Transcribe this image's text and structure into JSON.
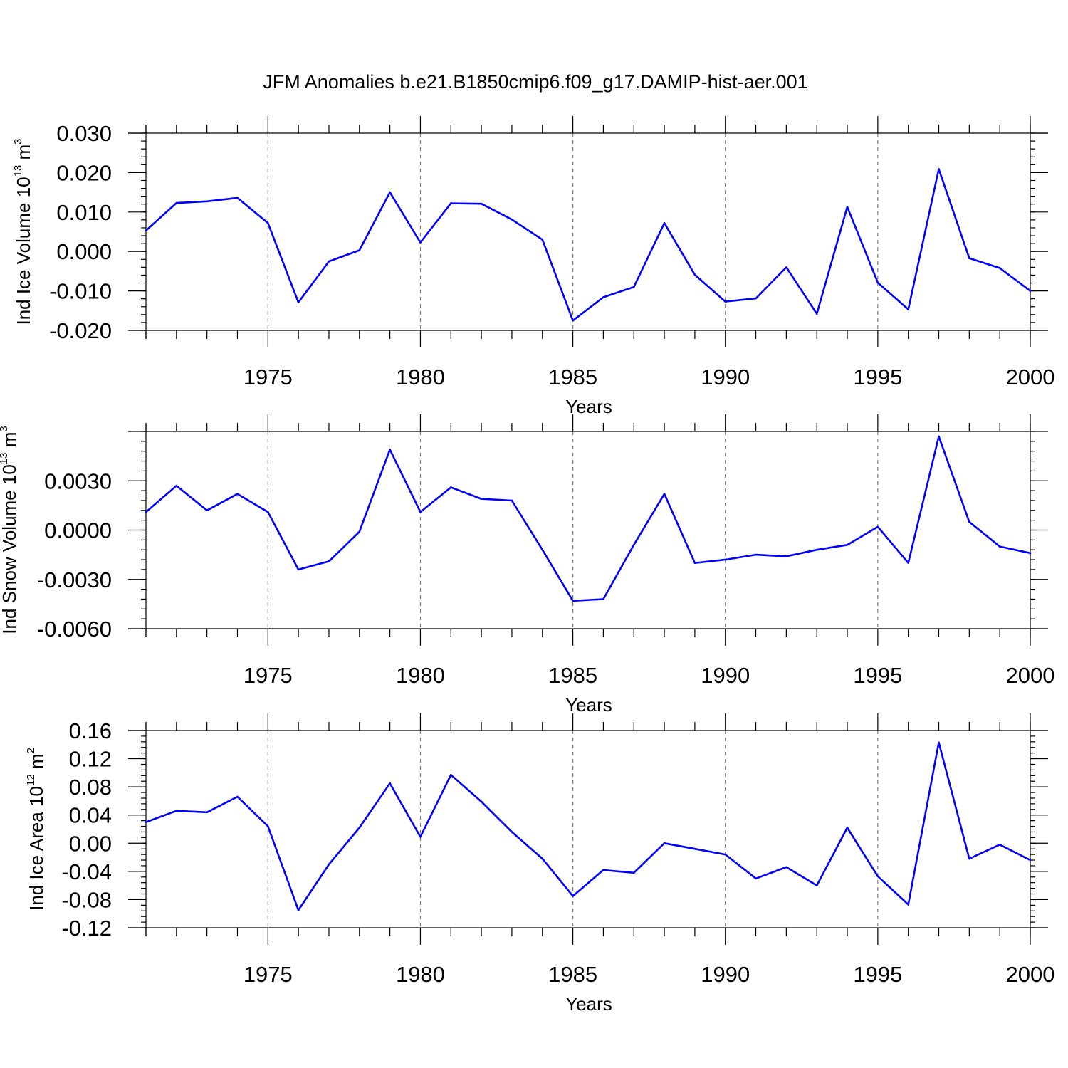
{
  "title": "JFM Anomalies b.e21.B1850cmip6.f09_g17.DAMIP-hist-aer.001",
  "colors": {
    "line": "#0000ff",
    "grid": "#7a7a7a",
    "axis": "#000000"
  },
  "chart_data": [
    {
      "type": "line",
      "ylabel": {
        "text": "Ind Ice Volume 10",
        "sup": "13",
        "unit": " m",
        "unit_sup": "3"
      },
      "xlabel": "Years",
      "xlim": [
        1971,
        2000
      ],
      "ylim": [
        -0.02,
        0.03
      ],
      "yticks": [
        -0.02,
        -0.01,
        0.0,
        0.01,
        0.02,
        0.03
      ],
      "ytick_labels": [
        "-0.020",
        "-0.010",
        "0.000",
        "0.010",
        "0.020",
        "0.030"
      ],
      "xticks": [
        1975,
        1980,
        1985,
        1990,
        1995,
        2000
      ],
      "xtick_labels": [
        "1975",
        "1980",
        "1985",
        "1990",
        "1995",
        "2000"
      ],
      "grid": "vertical dashed at major x ticks",
      "x": [
        1971,
        1972,
        1973,
        1974,
        1975,
        1976,
        1977,
        1978,
        1979,
        1980,
        1981,
        1982,
        1983,
        1984,
        1985,
        1986,
        1987,
        1988,
        1989,
        1990,
        1991,
        1992,
        1993,
        1994,
        1995,
        1996,
        1997,
        1998,
        1999,
        2000
      ],
      "y": [
        0.0053,
        0.0123,
        0.0127,
        0.0136,
        0.0072,
        -0.0129,
        -0.0025,
        0.0003,
        0.015,
        0.0023,
        0.0122,
        0.0121,
        0.0081,
        0.003,
        -0.0175,
        -0.0116,
        -0.009,
        0.0072,
        -0.0059,
        -0.0127,
        -0.0119,
        -0.004,
        -0.0158,
        0.0113,
        -0.0079,
        -0.0147,
        0.0209,
        -0.0017,
        -0.0042,
        -0.01
      ]
    },
    {
      "type": "line",
      "ylabel": {
        "text": "Ind Snow Volume 10",
        "sup": "13",
        "unit": " m",
        "unit_sup": "3"
      },
      "xlabel": "Years",
      "xlim": [
        1971,
        2000
      ],
      "ylim": [
        -0.006,
        0.006
      ],
      "yticks": [
        -0.006,
        -0.003,
        0.0,
        0.003
      ],
      "ytick_labels": [
        "-0.0060",
        "-0.0030",
        "0.0000",
        "0.0030"
      ],
      "xticks": [
        1975,
        1980,
        1985,
        1990,
        1995,
        2000
      ],
      "xtick_labels": [
        "1975",
        "1980",
        "1985",
        "1990",
        "1995",
        "2000"
      ],
      "grid": "vertical dashed at major x ticks",
      "x": [
        1971,
        1972,
        1973,
        1974,
        1975,
        1976,
        1977,
        1978,
        1979,
        1980,
        1981,
        1982,
        1983,
        1984,
        1985,
        1986,
        1987,
        1988,
        1989,
        1990,
        1991,
        1992,
        1993,
        1994,
        1995,
        1996,
        1997,
        1998,
        1999,
        2000
      ],
      "y": [
        0.0011,
        0.0027,
        0.0012,
        0.0022,
        0.0011,
        -0.0024,
        -0.0019,
        -0.0001,
        0.0049,
        0.0011,
        0.0026,
        0.0019,
        0.0018,
        -0.0012,
        -0.0043,
        -0.0042,
        -0.0009,
        0.0022,
        -0.002,
        -0.0018,
        -0.0015,
        -0.0016,
        -0.0012,
        -0.0009,
        0.0002,
        -0.002,
        0.0057,
        0.0005,
        -0.001,
        -0.0014
      ]
    },
    {
      "type": "line",
      "ylabel": {
        "text": "Ind Ice Area 10",
        "sup": "12",
        "unit": " m",
        "unit_sup": "2"
      },
      "xlabel": "Years",
      "xlim": [
        1971,
        2000
      ],
      "ylim": [
        -0.12,
        0.16
      ],
      "yticks": [
        -0.12,
        -0.08,
        -0.04,
        0.0,
        0.04,
        0.08,
        0.12,
        0.16
      ],
      "ytick_labels": [
        "-0.12",
        "-0.08",
        "-0.04",
        "0.00",
        "0.04",
        "0.08",
        "0.12",
        "0.16"
      ],
      "xticks": [
        1975,
        1980,
        1985,
        1990,
        1995,
        2000
      ],
      "xtick_labels": [
        "1975",
        "1980",
        "1985",
        "1990",
        "1995",
        "2000"
      ],
      "grid": "vertical dashed at major x ticks",
      "x": [
        1971,
        1972,
        1973,
        1974,
        1975,
        1976,
        1977,
        1978,
        1979,
        1980,
        1981,
        1982,
        1983,
        1984,
        1985,
        1986,
        1987,
        1988,
        1989,
        1990,
        1991,
        1992,
        1993,
        1994,
        1995,
        1996,
        1997,
        1998,
        1999,
        2000
      ],
      "y": [
        0.03,
        0.046,
        0.044,
        0.066,
        0.024,
        -0.095,
        -0.03,
        0.022,
        0.085,
        0.009,
        0.097,
        0.059,
        0.016,
        -0.022,
        -0.075,
        -0.038,
        -0.042,
        0.0,
        -0.008,
        -0.016,
        -0.05,
        -0.034,
        -0.06,
        0.022,
        -0.047,
        -0.087,
        0.143,
        -0.022,
        -0.002,
        -0.024
      ]
    }
  ]
}
